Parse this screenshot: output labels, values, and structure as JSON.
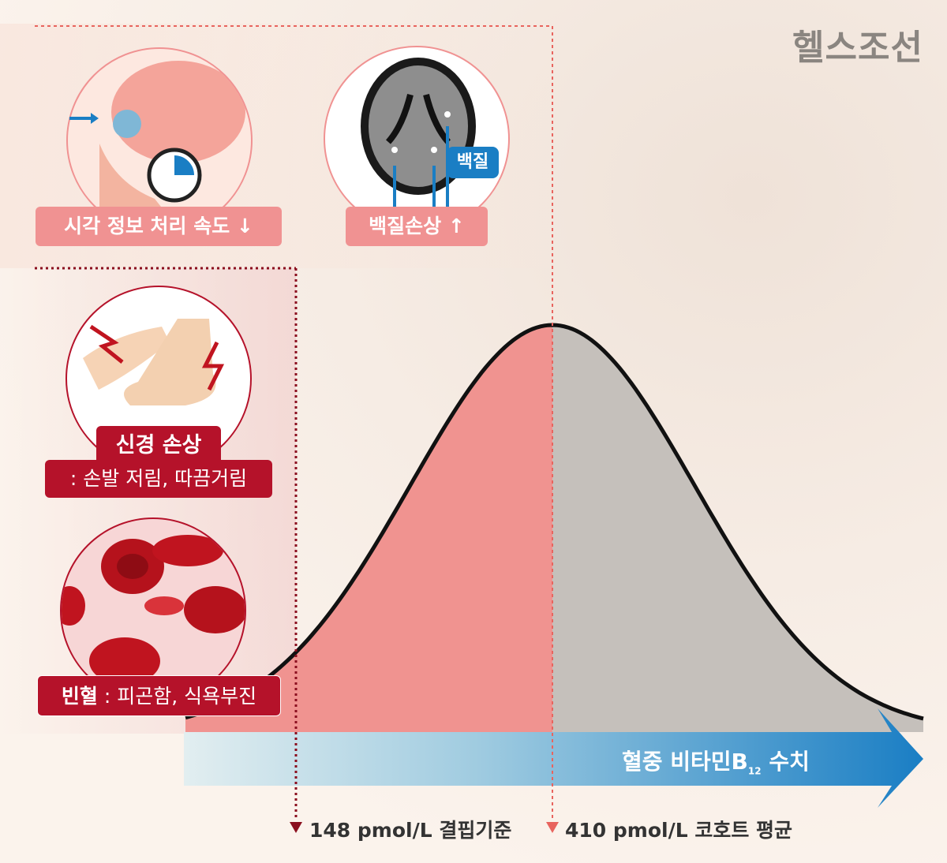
{
  "logo": "헬스조선",
  "effects": {
    "visual": "시각 정보 처리 속도 ↓",
    "white_matter": "백질손상 ↑",
    "white_matter_tag": "백질",
    "nerve_title": "신경 손상",
    "nerve_desc": ": 손발 저림, 따끔거림",
    "anemia_title": "빈혈",
    "anemia_desc": " : 피곤함, 식욕부진"
  },
  "axis": {
    "label_main": "혈중 비타민B",
    "label_sub": "12",
    "label_end": " 수치"
  },
  "markers": [
    {
      "text": "148 pmol/L 결핍기준",
      "color": "#8b0f1f"
    },
    {
      "text": "410 pmol/L 코호트 평균",
      "color": "#e8645e"
    }
  ],
  "colors": {
    "below_mean": "#f09390",
    "above_mean": "#c5c0bb",
    "deficiency": "#b5122a",
    "axis_arrow": "#1a7ec4"
  }
}
